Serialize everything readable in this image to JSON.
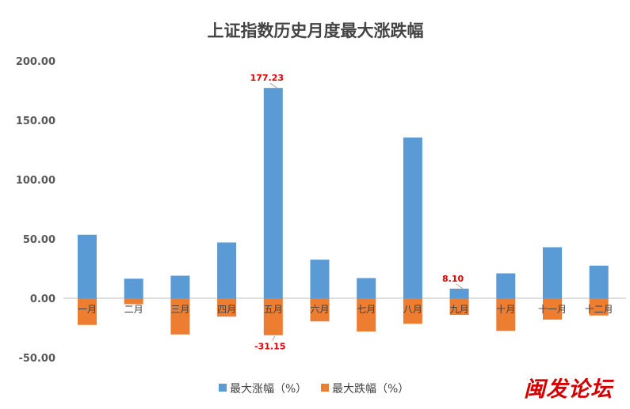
{
  "watermark": "闽发论坛",
  "chart_data": {
    "type": "bar",
    "title": "上证指数历史月度最大涨跌幅",
    "categories": [
      "一月",
      "二月",
      "三月",
      "四月",
      "五月",
      "六月",
      "七月",
      "八月",
      "九月",
      "十月",
      "十一月",
      "十二月"
    ],
    "series": [
      {
        "name": "最大涨幅（%）",
        "color": "#5b9bd5",
        "values": [
          53.5,
          16.5,
          19.0,
          47.0,
          177.23,
          32.5,
          17.0,
          135.5,
          8.1,
          21.0,
          43.0,
          27.5
        ]
      },
      {
        "name": "最大跌幅（%）",
        "color": "#ed7d31",
        "values": [
          -22.5,
          -5.0,
          -30.5,
          -15.5,
          -31.15,
          -19.5,
          -28.0,
          -21.5,
          -14.0,
          -27.5,
          -18.0,
          -14.5
        ]
      }
    ],
    "data_labels": [
      {
        "series": 0,
        "index": 4,
        "text": "177.23"
      },
      {
        "series": 1,
        "index": 4,
        "text": "-31.15"
      },
      {
        "series": 0,
        "index": 8,
        "text": "8.10"
      }
    ],
    "ylim": [
      -50,
      200
    ],
    "yticks": [
      "200.00",
      "150.00",
      "100.00",
      "50.00",
      "0.00",
      "-50.00"
    ],
    "ytick_values": [
      200,
      150,
      100,
      50,
      0,
      -50
    ],
    "grid": false,
    "legend": "bottom"
  }
}
